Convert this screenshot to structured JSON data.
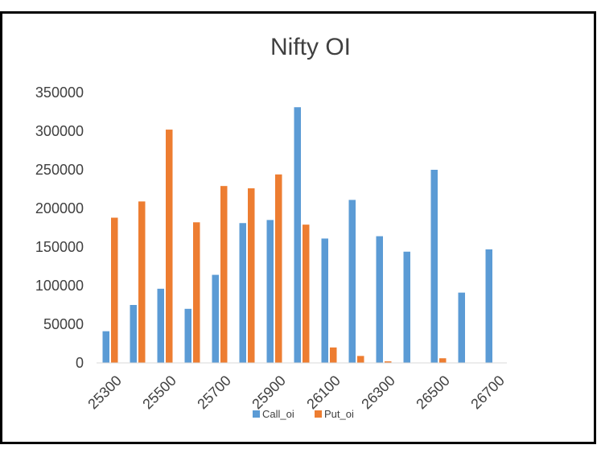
{
  "chart_data": {
    "type": "bar",
    "title": "Nifty OI",
    "xlabel": "",
    "ylabel": "",
    "categories": [
      "25300",
      "25400",
      "25500",
      "25600",
      "25700",
      "25800",
      "25900",
      "26000",
      "26100",
      "26200",
      "26300",
      "26400",
      "26500",
      "26600",
      "26700"
    ],
    "x_tick_labels_shown": [
      "25300",
      "25500",
      "25700",
      "25900",
      "26100",
      "26300",
      "26500",
      "26700"
    ],
    "series": [
      {
        "name": "Call_oi",
        "color": "#5B9BD5",
        "values": [
          41000,
          75000,
          96000,
          70000,
          114000,
          181000,
          185000,
          331000,
          161000,
          211000,
          164000,
          144000,
          250000,
          91000,
          147000
        ]
      },
      {
        "name": "Put_oi",
        "color": "#ED7D31",
        "values": [
          188000,
          209000,
          302000,
          182000,
          229000,
          226000,
          244000,
          179000,
          20000,
          9000,
          2000,
          0,
          6000,
          0,
          0
        ]
      }
    ],
    "ylim": [
      0,
      350000
    ],
    "yticks": [
      0,
      50000,
      100000,
      150000,
      200000,
      250000,
      300000,
      350000
    ],
    "grid": false,
    "legend": "bottom"
  }
}
